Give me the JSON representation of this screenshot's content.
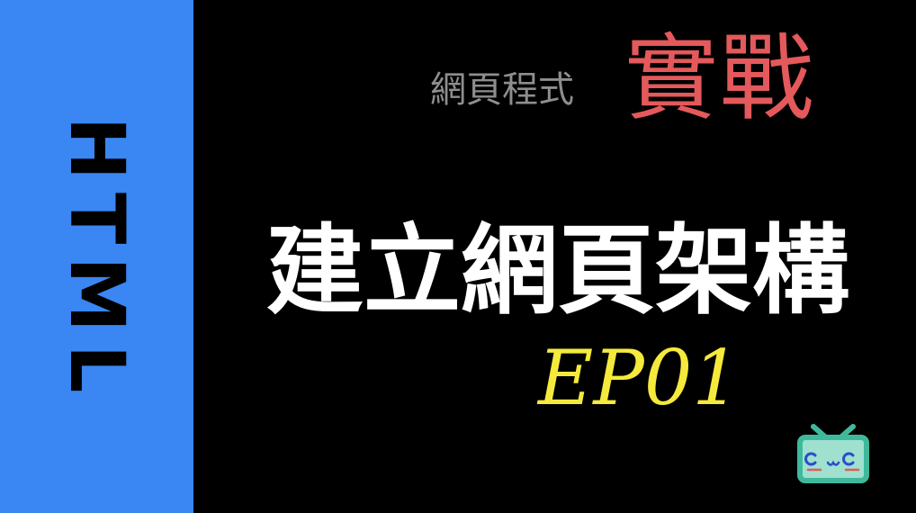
{
  "sidebar": {
    "vertical_label": "HTML",
    "color": "#3a86f2"
  },
  "subtitle": {
    "prefix": "網頁程式",
    "emphasis": "實戰",
    "prefix_color": "#8e8e8e",
    "emphasis_color": "#e4595b"
  },
  "title": {
    "text": "建立網頁架構",
    "color": "#ffffff"
  },
  "episode": {
    "text": "EP01",
    "color": "#f5ea3c"
  },
  "mascot": {
    "icon": "tv-mascot-icon",
    "face": "C ω C"
  }
}
